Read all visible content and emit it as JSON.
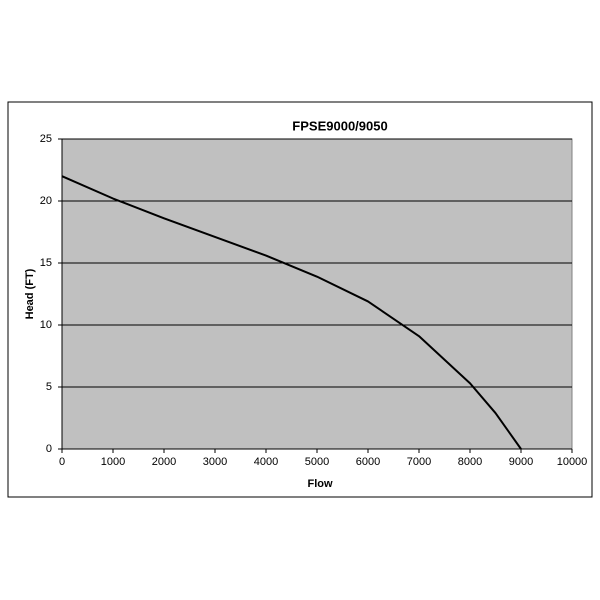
{
  "chart_data": {
    "type": "line",
    "title": "FPSE9000/9050",
    "x_label": "Flow",
    "y_label": "Head (FT)",
    "x": [
      0,
      1000,
      2000,
      3000,
      4000,
      5000,
      6000,
      7000,
      8000,
      8500,
      9000
    ],
    "values": [
      22,
      20.2,
      18.6,
      17.1,
      15.6,
      13.9,
      11.9,
      9.1,
      5.3,
      2.9,
      0
    ],
    "color": "#000000",
    "plot_background": "#c0c0c0",
    "xlim": [
      0,
      10000
    ],
    "xticks": [
      0,
      1000,
      2000,
      3000,
      4000,
      5000,
      6000,
      7000,
      8000,
      9000,
      10000
    ],
    "ylim": [
      0,
      25
    ],
    "yticks": [
      0,
      5,
      10,
      15,
      20,
      25
    ],
    "grid": true
  }
}
